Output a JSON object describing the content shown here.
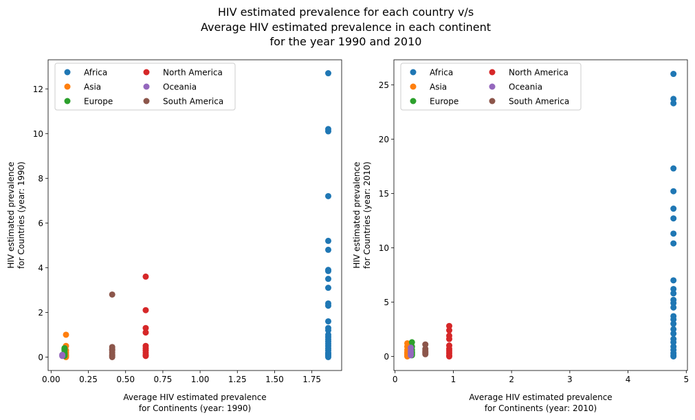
{
  "figure": {
    "title_lines": [
      "HIV estimated prevalence for each country v/s",
      "Average HIV estimated prevalence in each continent",
      "for the year 1990 and 2010"
    ]
  },
  "colors": {
    "Africa": "#1f77b4",
    "Asia": "#ff7f0e",
    "Europe": "#2ca02c",
    "North America": "#d62728",
    "Oceania": "#9467bd",
    "South America": "#8c564b"
  },
  "chart_data": [
    {
      "type": "scatter",
      "xlabel_lines": [
        "Average HIV estimated prevalence",
        "for Continents (year: 1990)"
      ],
      "ylabel_lines": [
        "HIV estimated prevalence",
        "for Countries (year: 1990)"
      ],
      "xlim": [
        -0.02,
        1.95
      ],
      "ylim": [
        -0.6,
        13.3
      ],
      "xticks": [
        0.0,
        0.25,
        0.5,
        0.75,
        1.0,
        1.25,
        1.5,
        1.75
      ],
      "xtick_labels": [
        "0.00",
        "0.25",
        "0.50",
        "0.75",
        "1.00",
        "1.25",
        "1.50",
        "1.75"
      ],
      "yticks": [
        0,
        2,
        4,
        6,
        8,
        10,
        12
      ],
      "ytick_labels": [
        "0",
        "2",
        "4",
        "6",
        "8",
        "10",
        "12"
      ],
      "grid": false,
      "legend": {
        "placement": "upper-left",
        "columns": 2,
        "entries": [
          "Africa",
          "Asia",
          "Europe",
          "North America",
          "Oceania",
          "South America"
        ]
      },
      "series": [
        {
          "name": "Africa",
          "x": 1.86,
          "y": [
            12.7,
            10.2,
            10.1,
            7.2,
            5.2,
            4.8,
            3.9,
            3.85,
            3.5,
            3.1,
            2.4,
            2.3,
            1.6,
            1.3,
            1.2,
            1.0,
            0.9,
            0.8,
            0.7,
            0.6,
            0.5,
            0.4,
            0.3,
            0.2,
            0.15,
            0.1,
            0.05,
            0.0
          ]
        },
        {
          "name": "Asia",
          "x": 0.1,
          "y": [
            1.0,
            0.5,
            0.3,
            0.2,
            0.1,
            0.05,
            0.0
          ]
        },
        {
          "name": "Europe",
          "x": 0.09,
          "y": [
            0.4,
            0.35,
            0.3,
            0.2,
            0.15,
            0.1,
            0.05
          ]
        },
        {
          "name": "North America",
          "x": 0.635,
          "y": [
            3.6,
            2.1,
            1.3,
            1.1,
            0.5,
            0.4,
            0.3,
            0.2,
            0.1,
            0.05
          ]
        },
        {
          "name": "Oceania",
          "x": 0.075,
          "y": [
            0.1,
            0.05
          ]
        },
        {
          "name": "South America",
          "x": 0.41,
          "y": [
            2.8,
            0.45,
            0.35,
            0.3,
            0.2,
            0.1,
            0.05,
            0.0
          ]
        }
      ]
    },
    {
      "type": "scatter",
      "xlabel_lines": [
        "Average HIV estimated prevalence",
        "for Continents (year: 2010)"
      ],
      "ylabel_lines": [
        "HIV estimated prevalence",
        "for Countries (year: 2010)"
      ],
      "xlim": [
        -0.02,
        5.02
      ],
      "ylim": [
        -1.3,
        27.3
      ],
      "xticks": [
        0,
        1,
        2,
        3,
        4,
        5
      ],
      "xtick_labels": [
        "0",
        "1",
        "2",
        "3",
        "4",
        "5"
      ],
      "yticks": [
        0,
        5,
        10,
        15,
        20,
        25
      ],
      "ytick_labels": [
        "0",
        "5",
        "10",
        "15",
        "20",
        "25"
      ],
      "grid": false,
      "legend": {
        "placement": "upper-left",
        "columns": 2,
        "entries": [
          "Africa",
          "Asia",
          "Europe",
          "North America",
          "Oceania",
          "South America"
        ]
      },
      "series": [
        {
          "name": "Africa",
          "x": 4.78,
          "y": [
            26.0,
            23.7,
            23.3,
            17.3,
            15.2,
            13.6,
            12.7,
            11.3,
            10.4,
            7.0,
            6.2,
            5.8,
            5.2,
            4.9,
            4.5,
            3.7,
            3.4,
            3.0,
            2.5,
            2.1,
            1.6,
            1.3,
            0.9,
            0.6,
            0.3,
            0.1,
            0.0
          ]
        },
        {
          "name": "Asia",
          "x": 0.21,
          "y": [
            1.2,
            0.9,
            0.6,
            0.4,
            0.3,
            0.2,
            0.1,
            0.0
          ]
        },
        {
          "name": "Europe",
          "x": 0.29,
          "y": [
            1.3,
            0.9,
            0.6,
            0.4,
            0.3,
            0.2,
            0.1
          ]
        },
        {
          "name": "North America",
          "x": 0.93,
          "y": [
            2.8,
            2.4,
            1.9,
            1.6,
            1.0,
            0.7,
            0.5,
            0.3,
            0.1,
            0.0
          ]
        },
        {
          "name": "Oceania",
          "x": 0.27,
          "y": [
            0.8,
            0.5,
            0.3,
            0.1
          ]
        },
        {
          "name": "South America",
          "x": 0.52,
          "y": [
            1.1,
            0.7,
            0.5,
            0.4,
            0.3,
            0.2
          ]
        }
      ]
    }
  ]
}
